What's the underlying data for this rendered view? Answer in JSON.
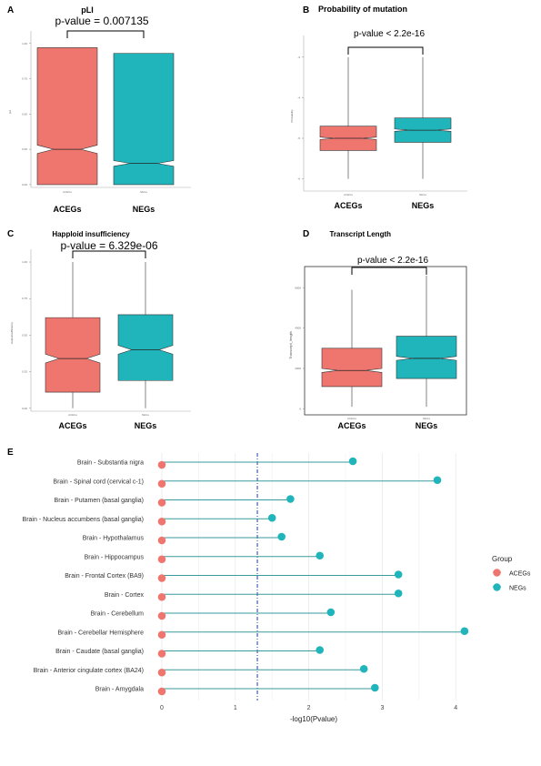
{
  "colors": {
    "aceg": "#ee766f",
    "neg": "#20b5bb",
    "axis": "#555555",
    "dashed": "#1f3da8"
  },
  "panel_labels": [
    "A",
    "B",
    "C",
    "D",
    "E"
  ],
  "chart_data": [
    {
      "type": "boxplot",
      "panel": "A",
      "title": "pLI",
      "annotation": "p-value = 0.007135",
      "categories": [
        "ACEGs",
        "NEGs"
      ],
      "ylabel": "pLI",
      "tick_labels_x": [
        "ACEGs",
        "NEGs"
      ],
      "yticks": [
        0,
        0.25,
        0.5,
        0.75,
        1.0
      ],
      "ytick_labels": [
        "0.00",
        "0.25",
        "0.50",
        "0.75",
        "1.00"
      ],
      "ylim": [
        -0.02,
        1.05
      ],
      "notched": true,
      "boxes": [
        {
          "name": "ACEGs",
          "q1": 0.0,
          "median": 0.25,
          "q3": 0.97,
          "notch_low": 0.22,
          "notch_high": 0.28,
          "wmin": 0.0,
          "wmax": 0.97
        },
        {
          "name": "NEGs",
          "q1": 0.0,
          "median": 0.15,
          "q3": 0.93,
          "notch_low": 0.13,
          "notch_high": 0.17,
          "wmin": 0.0,
          "wmax": 0.93
        }
      ]
    },
    {
      "type": "boxplot",
      "panel": "B",
      "title": "Probability of mutation",
      "annotation": "p-value < 2.2e-16",
      "categories": [
        "ACEGs",
        "NEGs"
      ],
      "ylabel": "Probability",
      "tick_labels_x": [
        "ACEGs",
        "NEGs"
      ],
      "yticks": [
        -6,
        -5,
        -4,
        -3
      ],
      "ytick_labels": [
        "-6",
        "-5",
        "-4",
        "-3"
      ],
      "ylim": [
        -6.3,
        -2.6
      ],
      "notched": true,
      "boxes": [
        {
          "name": "ACEGs",
          "q1": -5.3,
          "median": -5.0,
          "q3": -4.7,
          "notch_low": -5.03,
          "notch_high": -4.97,
          "wmin": -6.0,
          "wmax": -3.0
        },
        {
          "name": "NEGs",
          "q1": -5.1,
          "median": -4.8,
          "q3": -4.5,
          "notch_low": -4.83,
          "notch_high": -4.77,
          "wmin": -6.0,
          "wmax": -3.0
        }
      ]
    },
    {
      "type": "boxplot",
      "panel": "C",
      "title": "Happloid insufficiency",
      "annotation": "p-value = 6.329e-06",
      "categories": [
        "ACEGs",
        "NEGs"
      ],
      "ylabel": "Haploinsufficiency",
      "tick_labels_x": [
        "ACEGs",
        "NEGs"
      ],
      "yticks": [
        0,
        0.25,
        0.5,
        0.75,
        1.0
      ],
      "ytick_labels": [
        "0.00",
        "0.25",
        "0.50",
        "0.75",
        "1.00"
      ],
      "ylim": [
        -0.02,
        1.05
      ],
      "notched": true,
      "boxes": [
        {
          "name": "ACEGs",
          "q1": 0.11,
          "median": 0.34,
          "q3": 0.62,
          "notch_low": 0.31,
          "notch_high": 0.37,
          "wmin": 0.0,
          "wmax": 1.0
        },
        {
          "name": "NEGs",
          "q1": 0.19,
          "median": 0.4,
          "q3": 0.64,
          "notch_low": 0.37,
          "notch_high": 0.43,
          "wmin": 0.0,
          "wmax": 1.0
        }
      ]
    },
    {
      "type": "boxplot",
      "panel": "D",
      "title": "Transcript Length",
      "annotation": "p-value < 2.2e-16",
      "categories": [
        "ACEGs",
        "NEGs"
      ],
      "ylabel": "Transcript_length",
      "tick_labels_x": [
        "ACEGs",
        "NEGs"
      ],
      "yticks": [
        0,
        2000,
        4000,
        6000
      ],
      "ytick_labels": [
        "0",
        "2000",
        "4000",
        "6000"
      ],
      "ylim": [
        -300,
        6600
      ],
      "notched": true,
      "boxes": [
        {
          "name": "ACEGs",
          "q1": 1100,
          "median": 1900,
          "q3": 3000,
          "notch_low": 1800,
          "notch_high": 2000,
          "wmin": 100,
          "wmax": 5900
        },
        {
          "name": "NEGs",
          "q1": 1500,
          "median": 2500,
          "q3": 3600,
          "notch_low": 2400,
          "notch_high": 2600,
          "wmin": 100,
          "wmax": 6600
        }
      ]
    },
    {
      "type": "lollipop",
      "panel": "E",
      "xlabel": "-log10(Pvalue)",
      "xticks": [
        0,
        1,
        2,
        3,
        4
      ],
      "xlim": [
        -0.05,
        4.4
      ],
      "threshold": 1.3,
      "legend": {
        "title": "Group",
        "entries": [
          "ACEGs",
          "NEGs"
        ],
        "placement": "right"
      },
      "categories": [
        "Brain - Substantia nigra",
        "Brain - Spinal cord (cervical c-1)",
        "Brain - Putamen (basal ganglia)",
        "Brain - Nucleus accumbens (basal ganglia)",
        "Brain - Hypothalamus",
        "Brain - Hippocampus",
        "Brain - Frontal Cortex (BA9)",
        "Brain - Cortex",
        "Brain - Cerebellum",
        "Brain - Cerebellar Hemisphere",
        "Brain - Caudate (basal ganglia)",
        "Brain - Anterior cingulate cortex (BA24)",
        "Brain - Amygdala"
      ],
      "series": [
        {
          "name": "ACEGs",
          "values": [
            0,
            0,
            0,
            0,
            0,
            0,
            0,
            0,
            0,
            0,
            0,
            0,
            0
          ]
        },
        {
          "name": "NEGs",
          "values": [
            2.6,
            3.75,
            1.75,
            1.5,
            1.63,
            2.15,
            3.22,
            3.22,
            2.3,
            4.12,
            2.15,
            2.75,
            2.9
          ]
        }
      ]
    }
  ]
}
